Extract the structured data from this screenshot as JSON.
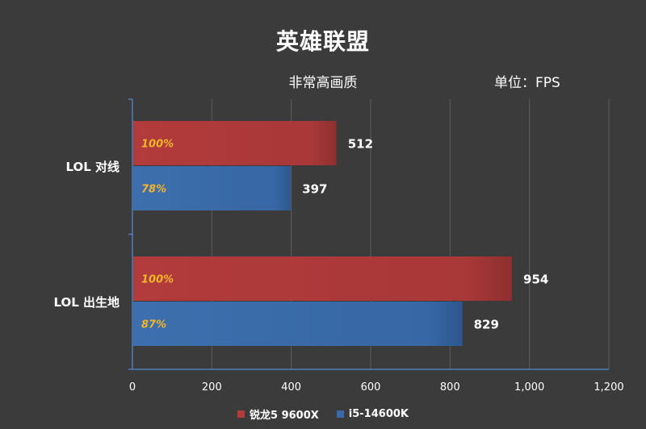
{
  "chart_data": {
    "type": "bar",
    "orientation": "horizontal",
    "title": "英雄联盟",
    "subtitle": "非常高画质",
    "unit_label": "单位：FPS",
    "categories": [
      "LOL 对线",
      "LOL 出生地"
    ],
    "series": [
      {
        "name": "锐龙5 9600X",
        "color": "#b23b3b",
        "values": [
          512,
          954
        ],
        "percent_labels": [
          "100%",
          "100%"
        ]
      },
      {
        "name": "i5-14600K",
        "color": "#3b6aa8",
        "values": [
          397,
          829
        ],
        "percent_labels": [
          "78%",
          "87%"
        ]
      }
    ],
    "xlim": [
      0,
      1200
    ],
    "xticks": [
      "0",
      "200",
      "400",
      "600",
      "800",
      "1,000",
      "1,200"
    ],
    "grid": true,
    "legend_position": "bottom"
  }
}
